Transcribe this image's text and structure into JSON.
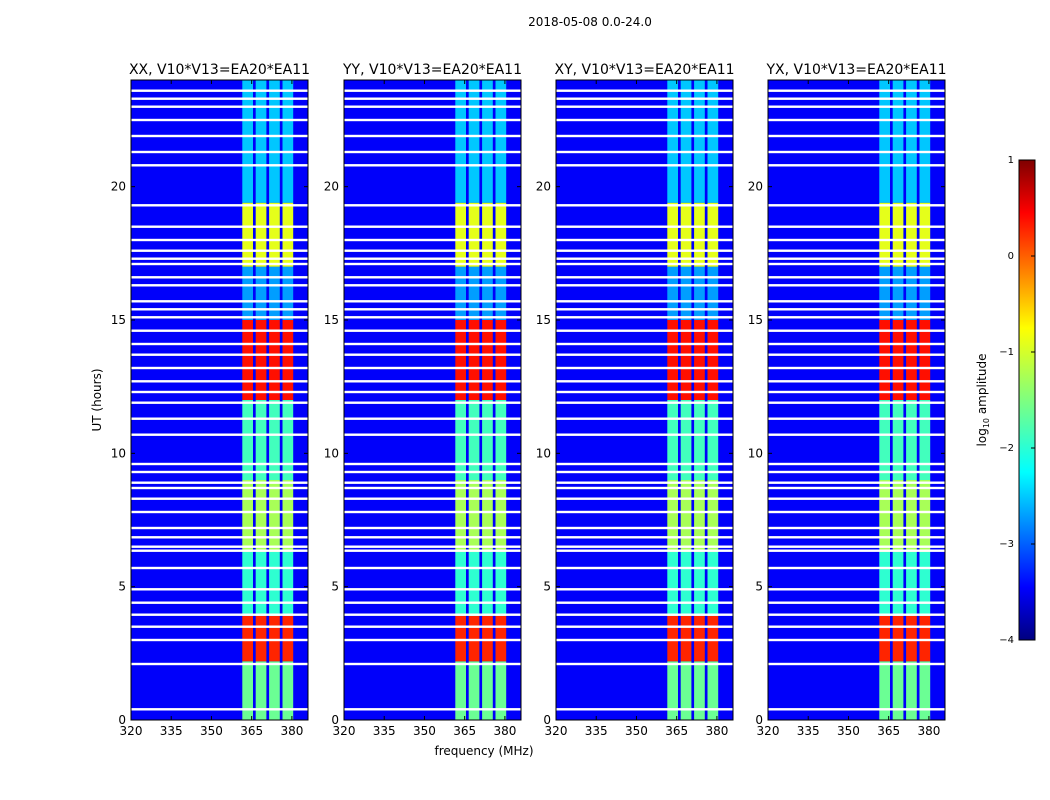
{
  "figure": {
    "suptitle": "2018-05-08 0.0-24.0",
    "xlabel": "frequency (MHz)",
    "ylabel": "UT (hours)"
  },
  "chart_data": {
    "type": "heatmap",
    "title": "2018-05-08 0.0-24.0",
    "xlabel": "frequency (MHz)",
    "ylabel": "UT (hours)",
    "xlim": [
      320,
      386
    ],
    "ylim": [
      0,
      24
    ],
    "x_ticks": [
      320,
      335,
      350,
      365,
      380
    ],
    "y_ticks": [
      0,
      5,
      10,
      15,
      20
    ],
    "panels": [
      {
        "title": "XX, V10*V13=EA20*EA11"
      },
      {
        "title": "YY, V10*V13=EA20*EA11"
      },
      {
        "title": "XY, V10*V13=EA20*EA11"
      },
      {
        "title": "YX, V10*V13=EA20*EA11"
      }
    ],
    "colorbar": {
      "label": "log10 amplitude",
      "range": [
        -4,
        1
      ],
      "ticks": [
        1,
        0,
        -1,
        -2,
        -3,
        -4
      ],
      "tick_labels": [
        "1",
        "0",
        "−1",
        "−2",
        "−3",
        "−4"
      ],
      "colormap": "jet"
    },
    "flagged_rows_hours": [
      0.4,
      2.1,
      3.0,
      3.5,
      3.95,
      4.4,
      4.9,
      5.7,
      6.35,
      6.5,
      6.85,
      7.2,
      7.8,
      8.3,
      8.7,
      8.9,
      9.3,
      9.6,
      10.7,
      11.3,
      11.9,
      12.3,
      12.7,
      13.2,
      13.7,
      14.1,
      14.6,
      15.1,
      15.4,
      15.7,
      16.3,
      16.6,
      17.1,
      17.3,
      17.6,
      18.0,
      18.5,
      19.3,
      20.8,
      21.3,
      21.9,
      22.5,
      23.0,
      23.3,
      23.6
    ],
    "signal_bands": {
      "channel_ranges_mhz": [
        [
          361.5,
          365.5
        ],
        [
          366.5,
          370.5
        ],
        [
          371.5,
          375.5
        ],
        [
          376.5,
          380.5
        ]
      ],
      "intensity_by_time": [
        {
          "ut": [
            0.0,
            2.2
          ],
          "log10_amp": -1.6
        },
        {
          "ut": [
            2.2,
            3.9
          ],
          "log10_amp": 0.2
        },
        {
          "ut": [
            3.9,
            6.3
          ],
          "log10_amp": -1.9
        },
        {
          "ut": [
            6.3,
            9.0
          ],
          "log10_amp": -1.3
        },
        {
          "ut": [
            9.0,
            12.0
          ],
          "log10_amp": -1.8
        },
        {
          "ut": [
            12.0,
            15.0
          ],
          "log10_amp": 0.3
        },
        {
          "ut": [
            15.0,
            17.0
          ],
          "log10_amp": -2.6
        },
        {
          "ut": [
            17.0,
            19.4
          ],
          "log10_amp": -1.0
        },
        {
          "ut": [
            19.4,
            24.0
          ],
          "log10_amp": -2.4
        }
      ],
      "background_log10_amp": -3.4
    }
  }
}
